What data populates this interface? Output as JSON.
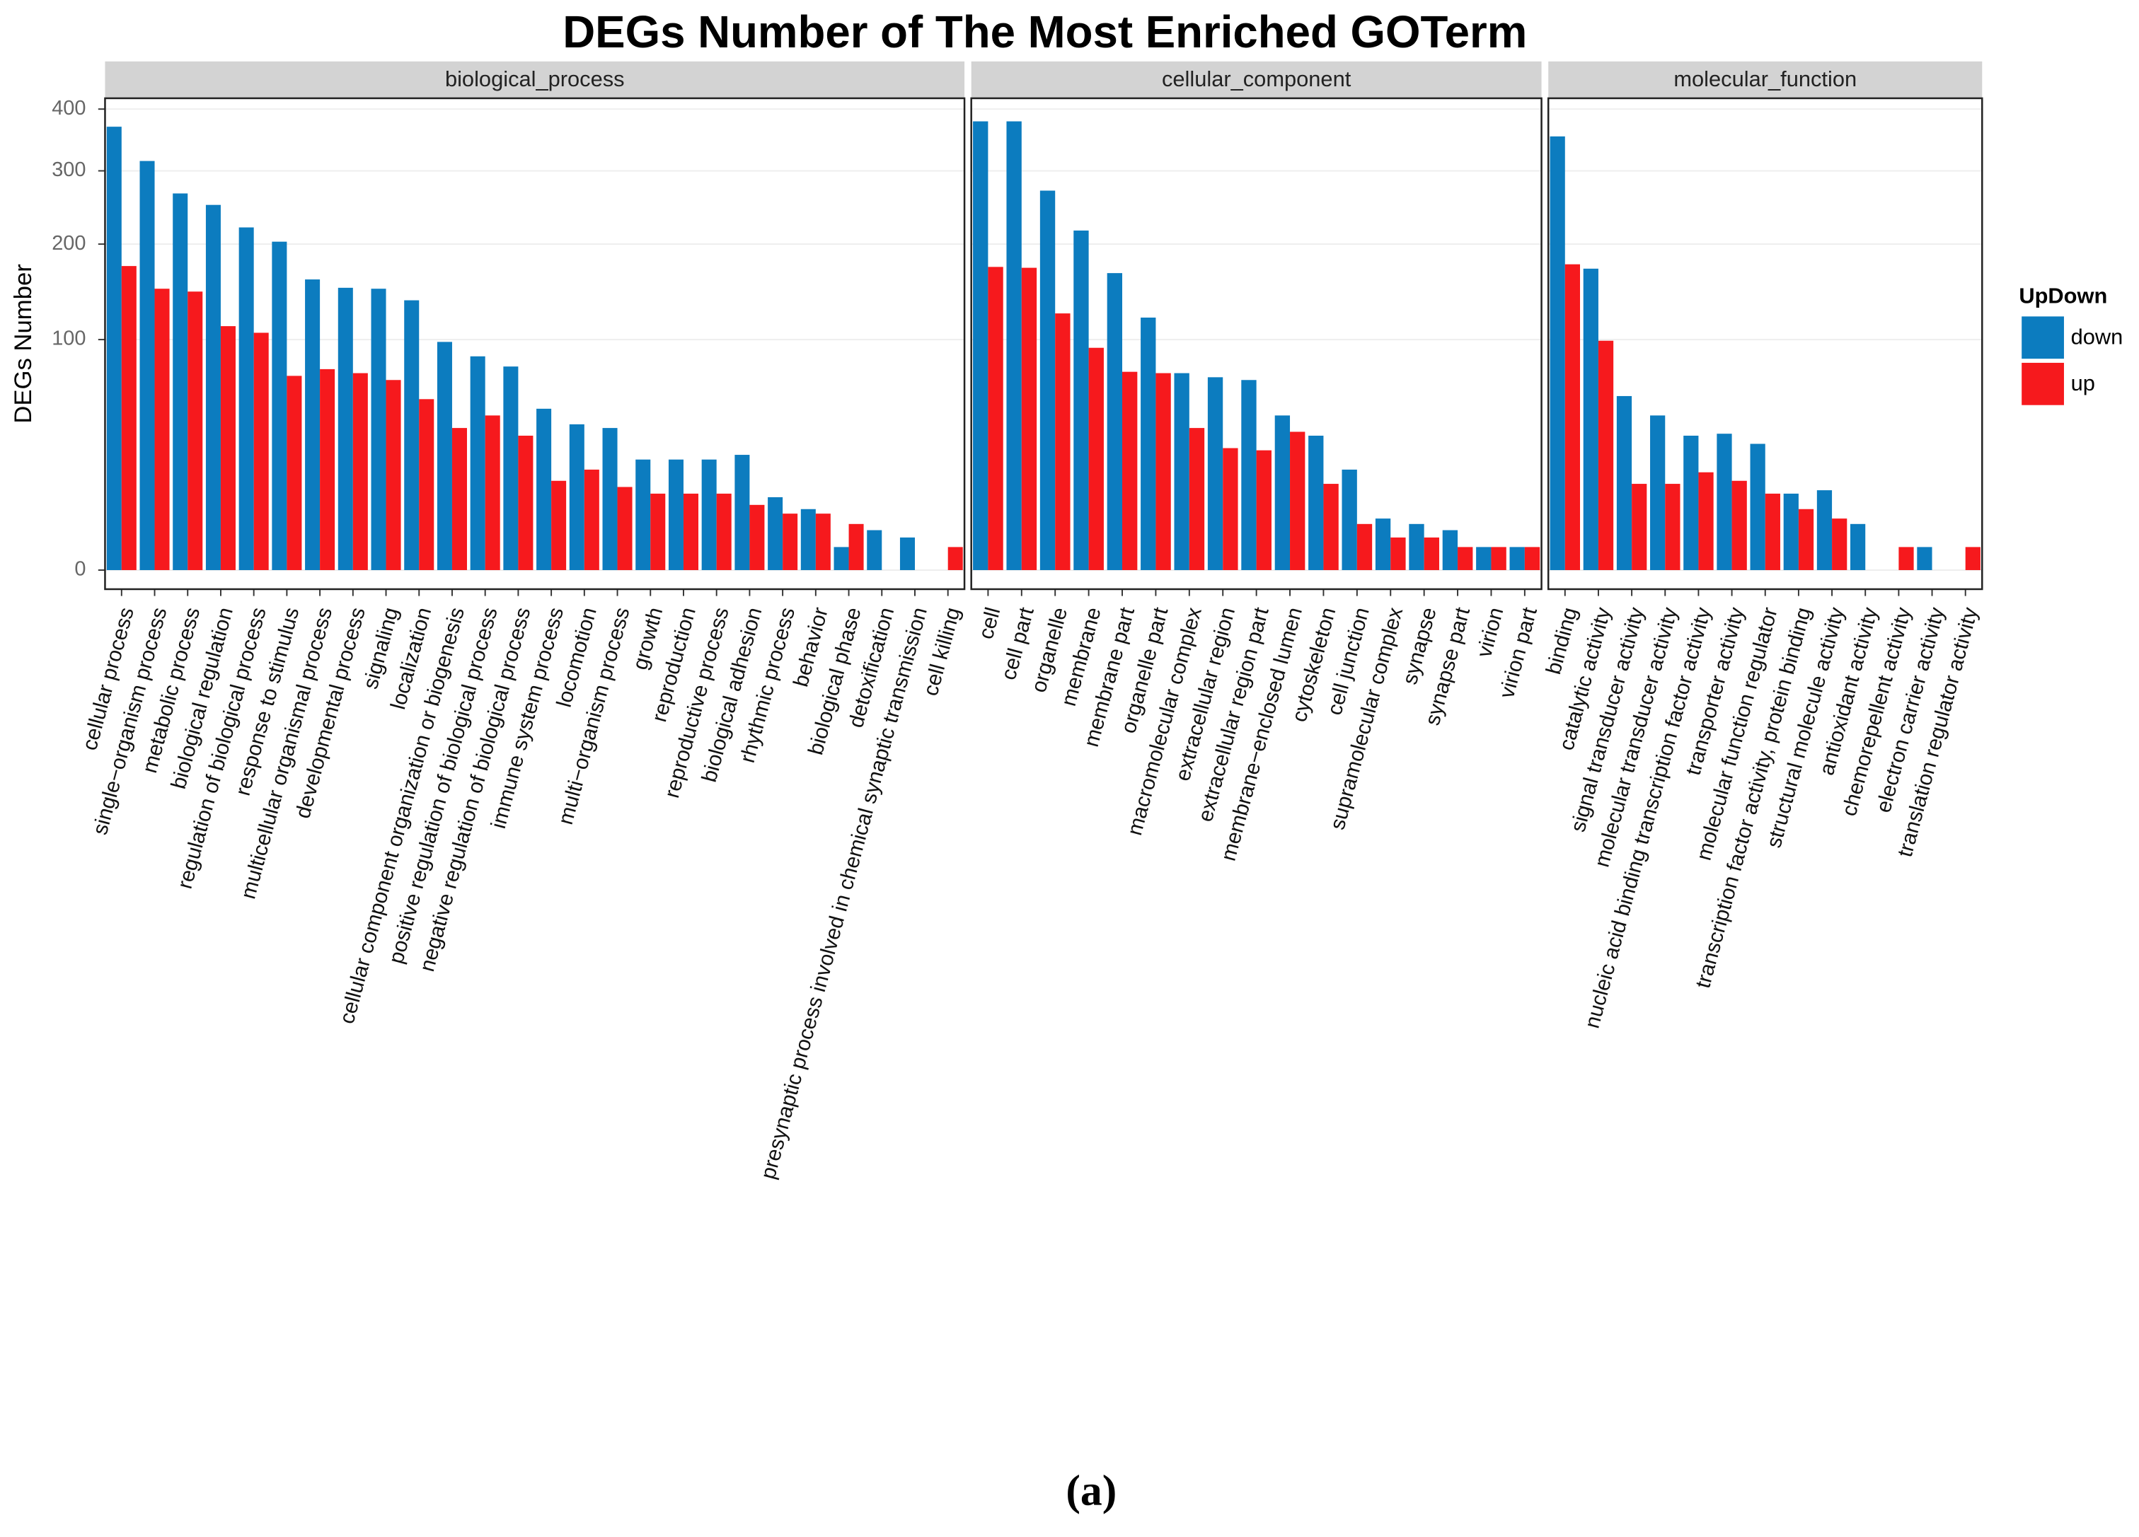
{
  "chart_data": {
    "type": "bar",
    "title": "DEGs Number of The Most Enriched GOTerm",
    "ylabel": "DEGs Number",
    "y_scale": "sqrt",
    "ylim": [
      0,
      419
    ],
    "yticks": [
      0,
      100,
      200,
      300,
      400
    ],
    "grid": true,
    "legend_title": "UpDown",
    "legend_position": "right",
    "series": [
      {
        "name": "down",
        "color": "#0c7cbf"
      },
      {
        "name": "up",
        "color": "#f6191d"
      }
    ],
    "facets": [
      {
        "title": "biological_process",
        "categories": [
          "cellular process",
          "single−organism process",
          "metabolic process",
          "biological regulation",
          "regulation of biological process",
          "response to stimulus",
          "multicellular organismal process",
          "developmental process",
          "signaling",
          "localization",
          "cellular component organization or biogenesis",
          "positive regulation of biological process",
          "negative regulation of biological process",
          "immune system process",
          "locomotion",
          "multi−organism process",
          "growth",
          "reproduction",
          "reproductive process",
          "biological adhesion",
          "rhythmic process",
          "behavior",
          "biological phase",
          "detoxification",
          "presynaptic process involved in chemical synaptic transmission",
          "cell killing"
        ],
        "values": [
          [
            370,
            315,
            267,
            251,
            221,
            203,
            159,
            150,
            149,
            137,
            98,
            86,
            78,
            49,
            40,
            38,
            23,
            23,
            23,
            25,
            10,
            7,
            1,
            3,
            2,
            0
          ],
          [
            174,
            149,
            146,
            112,
            106,
            71,
            76,
            73,
            68,
            55,
            38,
            45,
            34,
            15,
            19,
            13,
            11,
            11,
            11,
            8,
            6,
            6,
            4,
            0,
            0,
            1
          ]
        ]
      },
      {
        "title": "cellular_component",
        "categories": [
          "cell",
          "cell part",
          "organelle",
          "membrane",
          "membrane part",
          "organelle part",
          "macromolecular complex",
          "extracellular region",
          "extracellular region part",
          "membrane−enclosed lumen",
          "cytoskeleton",
          "cell junction",
          "supramolecular complex",
          "synapse",
          "synapse part",
          "virion",
          "virion part"
        ],
        "values": [
          [
            379,
            379,
            271,
            217,
            166,
            120,
            73,
            70,
            68,
            45,
            34,
            19,
            5,
            4,
            3,
            1,
            1
          ],
          [
            173,
            172,
            124,
            93,
            74,
            73,
            38,
            28,
            27,
            36,
            14,
            4,
            2,
            2,
            1,
            1,
            1
          ]
        ]
      },
      {
        "title": "molecular_function",
        "categories": [
          "binding",
          "catalytic activity",
          "signal transducer activity",
          "molecular transducer activity",
          "nucleic acid binding transcription factor activity",
          "transporter activity",
          "molecular function regulator",
          "transcription factor activity, protein binding",
          "structural molecule activity",
          "antioxidant activity",
          "chemorepellent activity",
          "electron carrier activity",
          "translation regulator activity"
        ],
        "values": [
          [
            354,
            171,
            57,
            45,
            34,
            35,
            30,
            11,
            12,
            4,
            0,
            1,
            0
          ],
          [
            176,
            99,
            14,
            14,
            18,
            15,
            11,
            7,
            5,
            0,
            1,
            0,
            1
          ]
        ]
      }
    ]
  },
  "caption": "(a)"
}
